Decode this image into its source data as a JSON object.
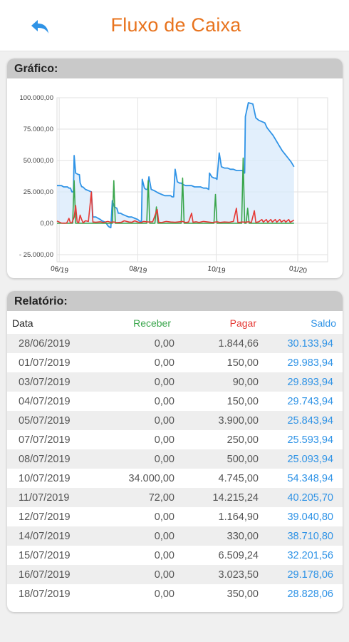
{
  "header": {
    "title": "Fluxo de Caixa",
    "back_icon": "back-arrow-icon"
  },
  "chart_section": {
    "title": "Gráfico:"
  },
  "report_section": {
    "title": "Relatório:"
  },
  "colors": {
    "accent": "#e8731d",
    "receber": "#3aa64c",
    "pagar": "#e53935",
    "saldo": "#2f93e6"
  },
  "chart_data": {
    "type": "line",
    "title": "",
    "xlabel": "",
    "ylabel": "",
    "ylim": [
      -25000,
      100000
    ],
    "yticks": [
      "100.000,00",
      "75.000,00",
      "50.000,00",
      "25.000,00",
      "0,00",
      "- 25.000,00"
    ],
    "ytick_values": [
      100000,
      75000,
      50000,
      25000,
      0,
      -25000
    ],
    "xticks": [
      "06/19",
      "08/19",
      "10/19",
      "01/20"
    ],
    "xtick_positions": [
      3,
      108,
      213,
      322
    ],
    "xlim": [
      0,
      362
    ],
    "grid": true,
    "legend": "none",
    "series": [
      {
        "key": "saldo",
        "fill": true,
        "points": [
          [
            0,
            30000
          ],
          [
            6,
            30000
          ],
          [
            9,
            29000
          ],
          [
            14,
            29000
          ],
          [
            16,
            28000
          ],
          [
            18,
            28000
          ],
          [
            20,
            25000
          ],
          [
            22,
            25000
          ],
          [
            23,
            54000
          ],
          [
            25,
            40000
          ],
          [
            28,
            39000
          ],
          [
            30,
            38700
          ],
          [
            31,
            32200
          ],
          [
            33,
            29200
          ],
          [
            35,
            28800
          ],
          [
            38,
            27000
          ],
          [
            42,
            26000
          ],
          [
            46,
            25000
          ],
          [
            48,
            5000
          ],
          [
            52,
            5000
          ],
          [
            55,
            4000
          ],
          [
            58,
            3000
          ],
          [
            60,
            2000
          ],
          [
            64,
            1000
          ],
          [
            66,
            0
          ],
          [
            68,
            -2000
          ],
          [
            70,
            -3000
          ],
          [
            72,
            -3500
          ],
          [
            74,
            18000
          ],
          [
            77,
            13000
          ],
          [
            80,
            12000
          ],
          [
            82,
            8000
          ],
          [
            85,
            8000
          ],
          [
            88,
            7000
          ],
          [
            92,
            6000
          ],
          [
            96,
            5000
          ],
          [
            100,
            5000
          ],
          [
            104,
            4000
          ],
          [
            108,
            3000
          ],
          [
            110,
            2000
          ],
          [
            113,
            1000
          ],
          [
            114,
            35000
          ],
          [
            117,
            28000
          ],
          [
            119,
            27000
          ],
          [
            121,
            27000
          ],
          [
            123,
            37000
          ],
          [
            126,
            27000
          ],
          [
            130,
            26000
          ],
          [
            133,
            25000
          ],
          [
            136,
            24000
          ],
          [
            140,
            23000
          ],
          [
            144,
            22000
          ],
          [
            148,
            22000
          ],
          [
            152,
            22000
          ],
          [
            154,
            21000
          ],
          [
            156,
            21000
          ],
          [
            158,
            43000
          ],
          [
            161,
            33000
          ],
          [
            164,
            32000
          ],
          [
            166,
            32000
          ],
          [
            168,
            31000
          ],
          [
            172,
            30000
          ],
          [
            176,
            30000
          ],
          [
            180,
            30000
          ],
          [
            184,
            29000
          ],
          [
            188,
            29000
          ],
          [
            192,
            29000
          ],
          [
            196,
            28000
          ],
          [
            200,
            28000
          ],
          [
            203,
            27000
          ],
          [
            204,
            40000
          ],
          [
            207,
            37000
          ],
          [
            210,
            36000
          ],
          [
            212,
            36000
          ],
          [
            214,
            35000
          ],
          [
            217,
            56000
          ],
          [
            220,
            45000
          ],
          [
            224,
            44000
          ],
          [
            228,
            44000
          ],
          [
            232,
            43000
          ],
          [
            236,
            43000
          ],
          [
            240,
            42000
          ],
          [
            244,
            42000
          ],
          [
            248,
            42000
          ],
          [
            251,
            40000
          ],
          [
            252,
            85000
          ],
          [
            256,
            96000
          ],
          [
            262,
            95000
          ],
          [
            266,
            84000
          ],
          [
            270,
            82000
          ],
          [
            274,
            81000
          ],
          [
            278,
            80000
          ],
          [
            281,
            76000
          ],
          [
            285,
            73000
          ],
          [
            289,
            70000
          ],
          [
            293,
            66000
          ],
          [
            297,
            62000
          ],
          [
            301,
            58000
          ],
          [
            305,
            55000
          ],
          [
            309,
            52000
          ],
          [
            313,
            49000
          ],
          [
            317,
            45000
          ]
        ]
      },
      {
        "key": "receber",
        "fill": false,
        "points": [
          [
            0,
            0
          ],
          [
            21,
            0
          ],
          [
            23,
            34000
          ],
          [
            25,
            0
          ],
          [
            30,
            0
          ],
          [
            31,
            72
          ],
          [
            33,
            0
          ],
          [
            74,
            0
          ],
          [
            76,
            34000
          ],
          [
            78,
            0
          ],
          [
            120,
            0
          ],
          [
            122,
            34000
          ],
          [
            124,
            0
          ],
          [
            131,
            0
          ],
          [
            133,
            13000
          ],
          [
            135,
            0
          ],
          [
            166,
            0
          ],
          [
            168,
            36000
          ],
          [
            170,
            0
          ],
          [
            210,
            0
          ],
          [
            212,
            23000
          ],
          [
            214,
            0
          ],
          [
            247,
            0
          ],
          [
            249,
            52000
          ],
          [
            251,
            0
          ],
          [
            253,
            0
          ],
          [
            255,
            12000
          ],
          [
            257,
            0
          ],
          [
            317,
            0
          ]
        ]
      },
      {
        "key": "pagar",
        "fill": false,
        "points": [
          [
            0,
            1845
          ],
          [
            6,
            150
          ],
          [
            10,
            90
          ],
          [
            13,
            150
          ],
          [
            16,
            3900
          ],
          [
            18,
            250
          ],
          [
            20,
            500
          ],
          [
            23,
            4745
          ],
          [
            25,
            14215
          ],
          [
            27,
            1165
          ],
          [
            29,
            330
          ],
          [
            31,
            6509
          ],
          [
            33,
            3024
          ],
          [
            35,
            350
          ],
          [
            38,
            2000
          ],
          [
            42,
            1500
          ],
          [
            46,
            25000
          ],
          [
            48,
            1000
          ],
          [
            52,
            800
          ],
          [
            58,
            1200
          ],
          [
            62,
            600
          ],
          [
            68,
            1500
          ],
          [
            72,
            800
          ],
          [
            76,
            1000
          ],
          [
            80,
            500
          ],
          [
            86,
            800
          ],
          [
            90,
            2000
          ],
          [
            96,
            1000
          ],
          [
            100,
            800
          ],
          [
            104,
            2000
          ],
          [
            108,
            1000
          ],
          [
            112,
            500
          ],
          [
            116,
            1500
          ],
          [
            122,
            1000
          ],
          [
            128,
            1200
          ],
          [
            134,
            11000
          ],
          [
            136,
            800
          ],
          [
            140,
            600
          ],
          [
            146,
            1500
          ],
          [
            152,
            1000
          ],
          [
            158,
            800
          ],
          [
            164,
            1200
          ],
          [
            168,
            1500
          ],
          [
            172,
            600
          ],
          [
            176,
            1000
          ],
          [
            180,
            8000
          ],
          [
            182,
            800
          ],
          [
            186,
            1200
          ],
          [
            190,
            700
          ],
          [
            196,
            1500
          ],
          [
            202,
            1000
          ],
          [
            208,
            600
          ],
          [
            214,
            1200
          ],
          [
            218,
            700
          ],
          [
            224,
            1000
          ],
          [
            230,
            800
          ],
          [
            236,
            1500
          ],
          [
            240,
            12000
          ],
          [
            242,
            600
          ],
          [
            248,
            1000
          ],
          [
            252,
            800
          ],
          [
            256,
            1200
          ],
          [
            260,
            600
          ],
          [
            264,
            10000
          ],
          [
            266,
            700
          ],
          [
            270,
            1200
          ],
          [
            274,
            3000
          ],
          [
            276,
            900
          ],
          [
            280,
            3000
          ],
          [
            282,
            800
          ],
          [
            286,
            3000
          ],
          [
            288,
            1000
          ],
          [
            292,
            3000
          ],
          [
            294,
            900
          ],
          [
            298,
            3000
          ],
          [
            300,
            1000
          ],
          [
            304,
            2500
          ],
          [
            306,
            900
          ],
          [
            310,
            3000
          ],
          [
            312,
            800
          ],
          [
            317,
            2500
          ]
        ]
      }
    ]
  },
  "table": {
    "columns": {
      "date": "Data",
      "receber": "Receber",
      "pagar": "Pagar",
      "saldo": "Saldo"
    },
    "rows": [
      [
        "28/06/2019",
        "0,00",
        "1.844,66",
        "30.133,94"
      ],
      [
        "01/07/2019",
        "0,00",
        "150,00",
        "29.983,94"
      ],
      [
        "03/07/2019",
        "0,00",
        "90,00",
        "29.893,94"
      ],
      [
        "04/07/2019",
        "0,00",
        "150,00",
        "29.743,94"
      ],
      [
        "05/07/2019",
        "0,00",
        "3.900,00",
        "25.843,94"
      ],
      [
        "07/07/2019",
        "0,00",
        "250,00",
        "25.593,94"
      ],
      [
        "08/07/2019",
        "0,00",
        "500,00",
        "25.093,94"
      ],
      [
        "10/07/2019",
        "34.000,00",
        "4.745,00",
        "54.348,94"
      ],
      [
        "11/07/2019",
        "72,00",
        "14.215,24",
        "40.205,70"
      ],
      [
        "12/07/2019",
        "0,00",
        "1.164,90",
        "39.040,80"
      ],
      [
        "14/07/2019",
        "0,00",
        "330,00",
        "38.710,80"
      ],
      [
        "15/07/2019",
        "0,00",
        "6.509,24",
        "32.201,56"
      ],
      [
        "16/07/2019",
        "0,00",
        "3.023,50",
        "29.178,06"
      ],
      [
        "18/07/2019",
        "0,00",
        "350,00",
        "28.828,06"
      ]
    ]
  }
}
